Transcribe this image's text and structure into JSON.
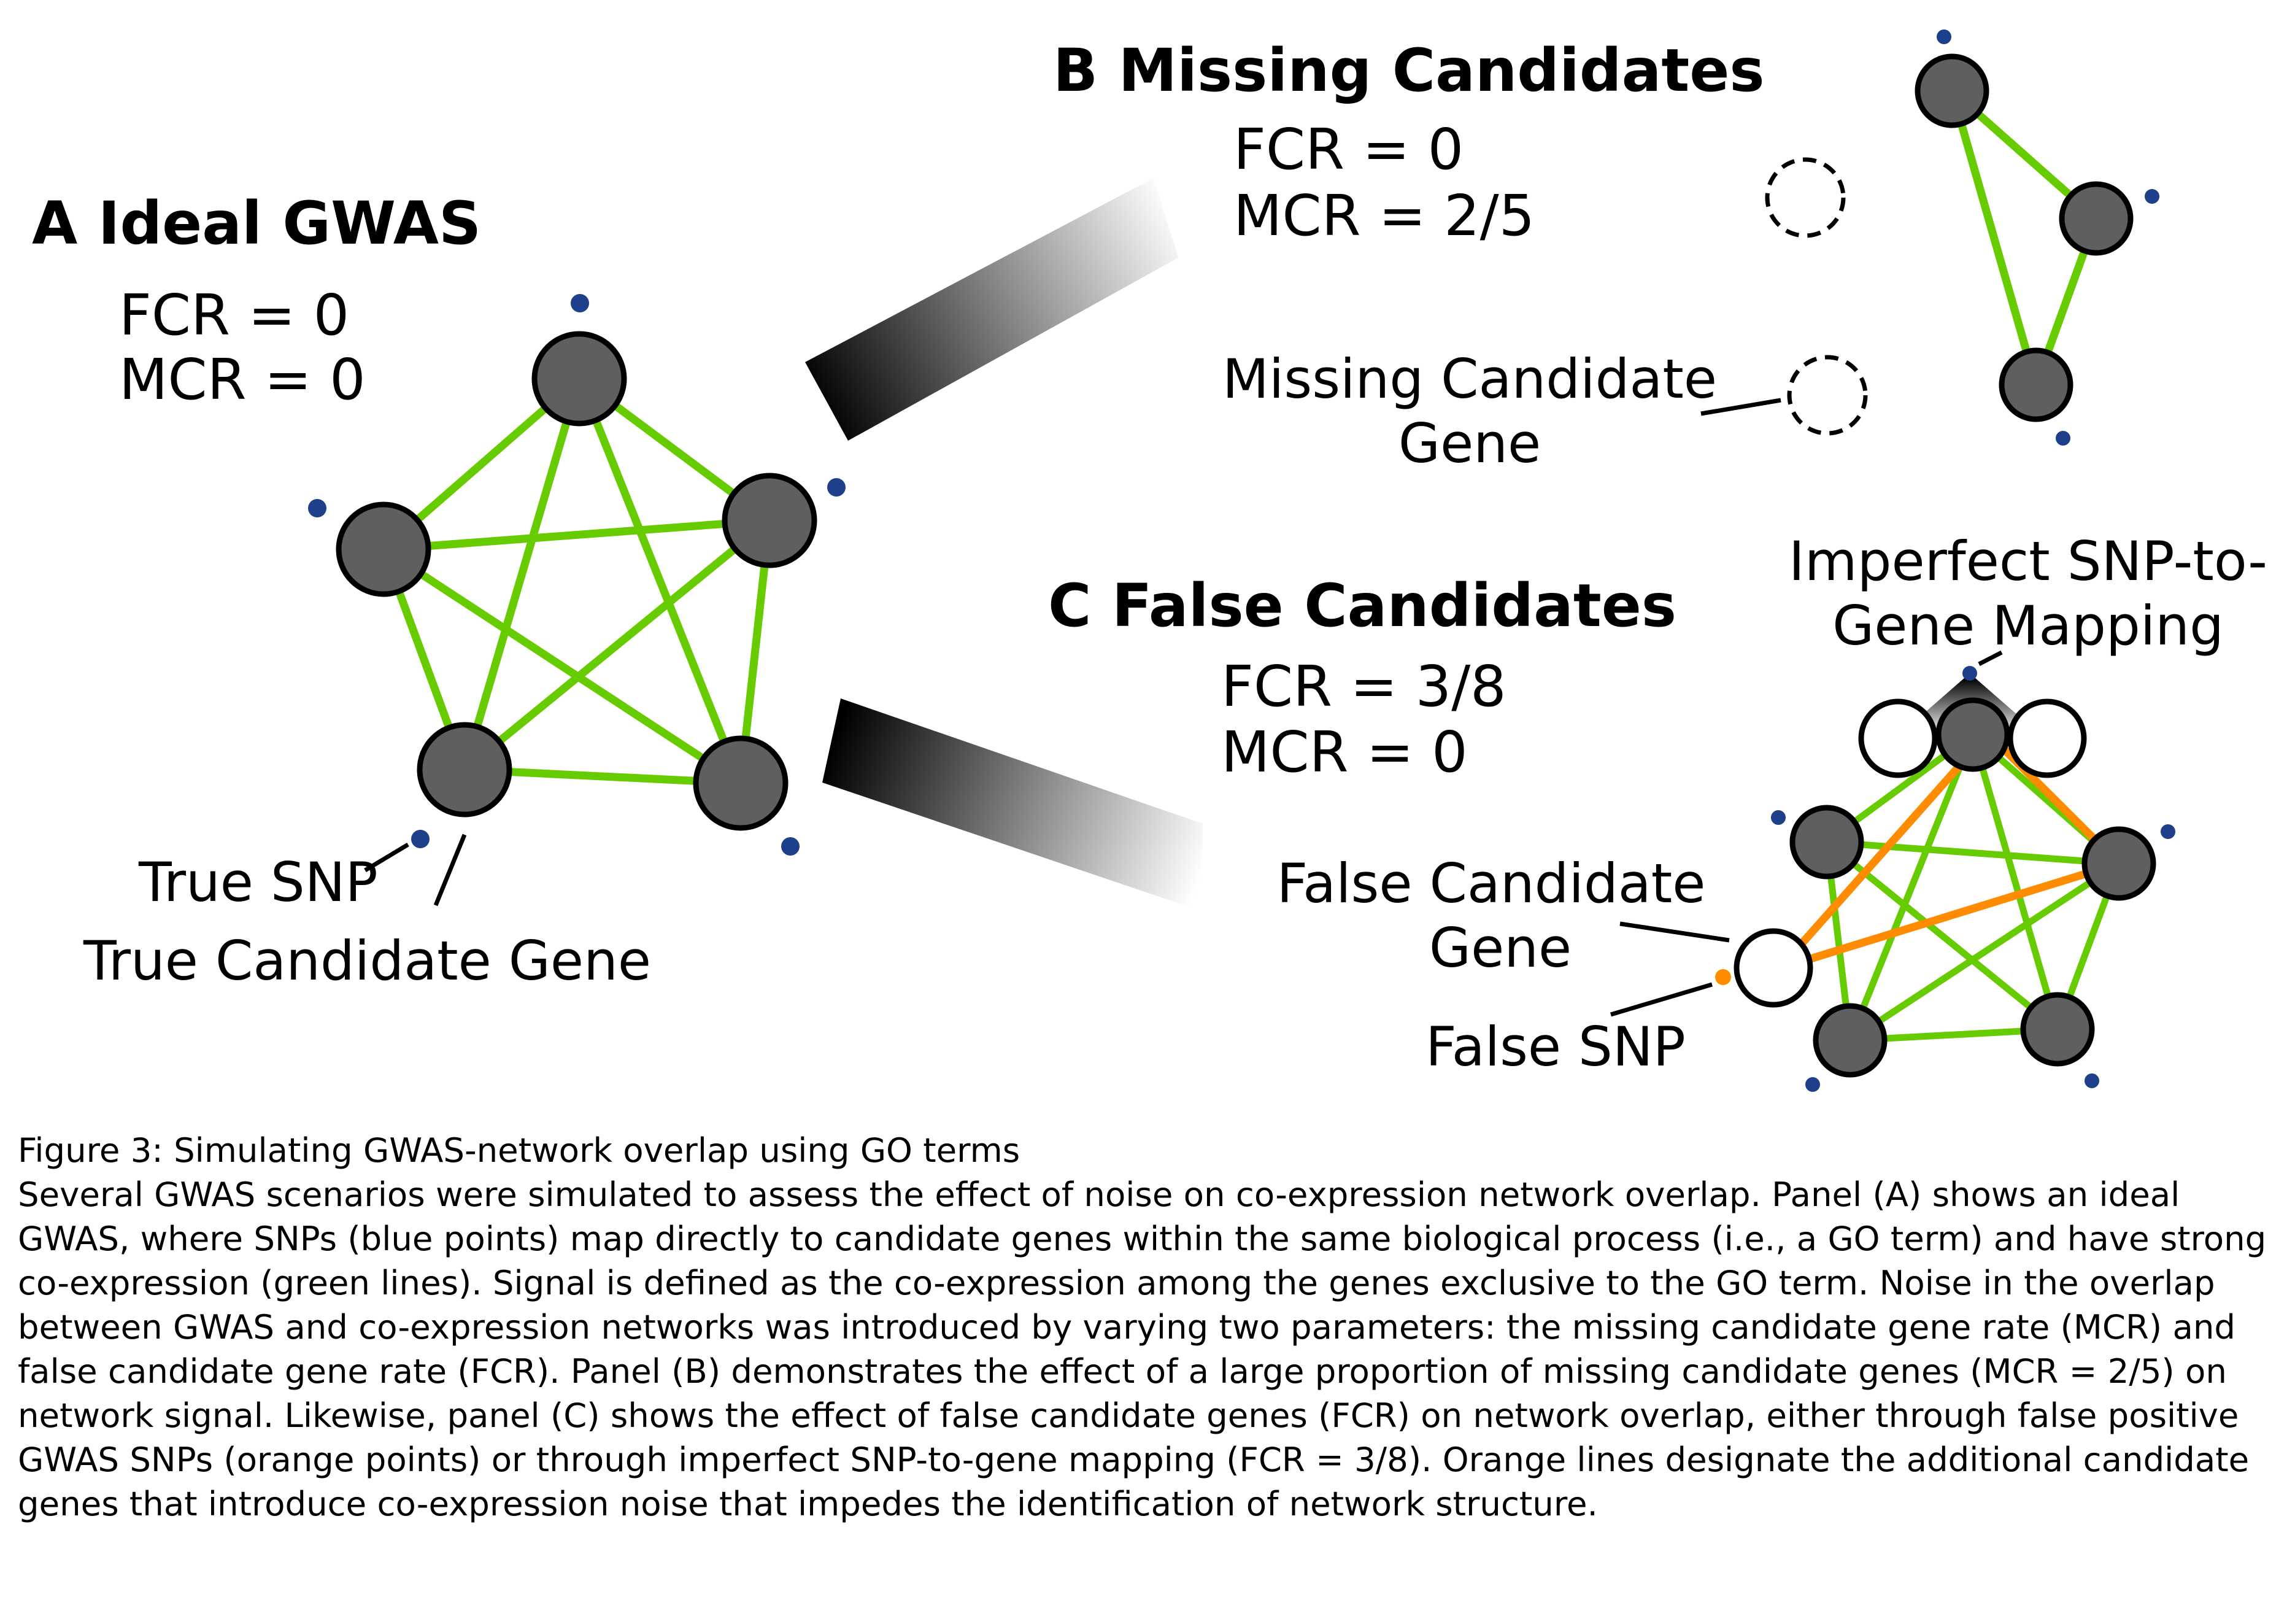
{
  "panel_a": {
    "title": "A Ideal GWAS",
    "fcr": "FCR = 0",
    "mcr": "MCR = 0",
    "label_true_snp": "True SNP",
    "label_true_gene": "True Candidate Gene"
  },
  "panel_b": {
    "title": "B Missing Candidates",
    "fcr": "FCR = 0",
    "mcr": "MCR = 2/5",
    "label_missing_line1": "Missing Candidate",
    "label_missing_line2": "Gene"
  },
  "panel_c": {
    "title": "C False Candidates",
    "fcr": "FCR = 3/8",
    "mcr": "MCR = 0",
    "label_imperfect_line1": "Imperfect SNP-to-",
    "label_imperfect_line2": "Gene Mapping",
    "label_false_gene_line1": "False Candidate",
    "label_false_gene_line2": "Gene",
    "label_false_snp": "False SNP"
  },
  "colors": {
    "coexpression_edge": "#66cc00",
    "false_edge": "#ff8c00",
    "true_snp": "#1e3f8a",
    "false_snp": "#ff8c00",
    "gene_fill": "#5f5f5f"
  },
  "caption": {
    "title": "Figure 3: Simulating GWAS-network overlap using GO terms",
    "body": "Several GWAS scenarios were simulated to assess the effect of noise on co-expression network overlap. Panel (A) shows an ideal GWAS, where SNPs (blue points) map directly to candidate genes within the same biological process (i.e., a GO term) and have strong co-expression (green lines). Signal is defined as the co-expression among the genes exclusive to the GO term. Noise in the overlap between GWAS and co-expression networks was introduced by varying two parameters: the missing candidate gene rate (MCR) and false candidate gene rate (FCR). Panel (B) demonstrates the effect of a large proportion of missing candidate genes (MCR = 2/5) on network signal. Likewise, panel (C) shows the effect of false candidate genes (FCR) on network overlap, either through false positive GWAS SNPs (orange points) or through imperfect SNP-to-gene mapping (FCR = 3/8). Orange lines designate the additional candidate genes that introduce co-expression noise that impedes the identification of network structure."
  }
}
